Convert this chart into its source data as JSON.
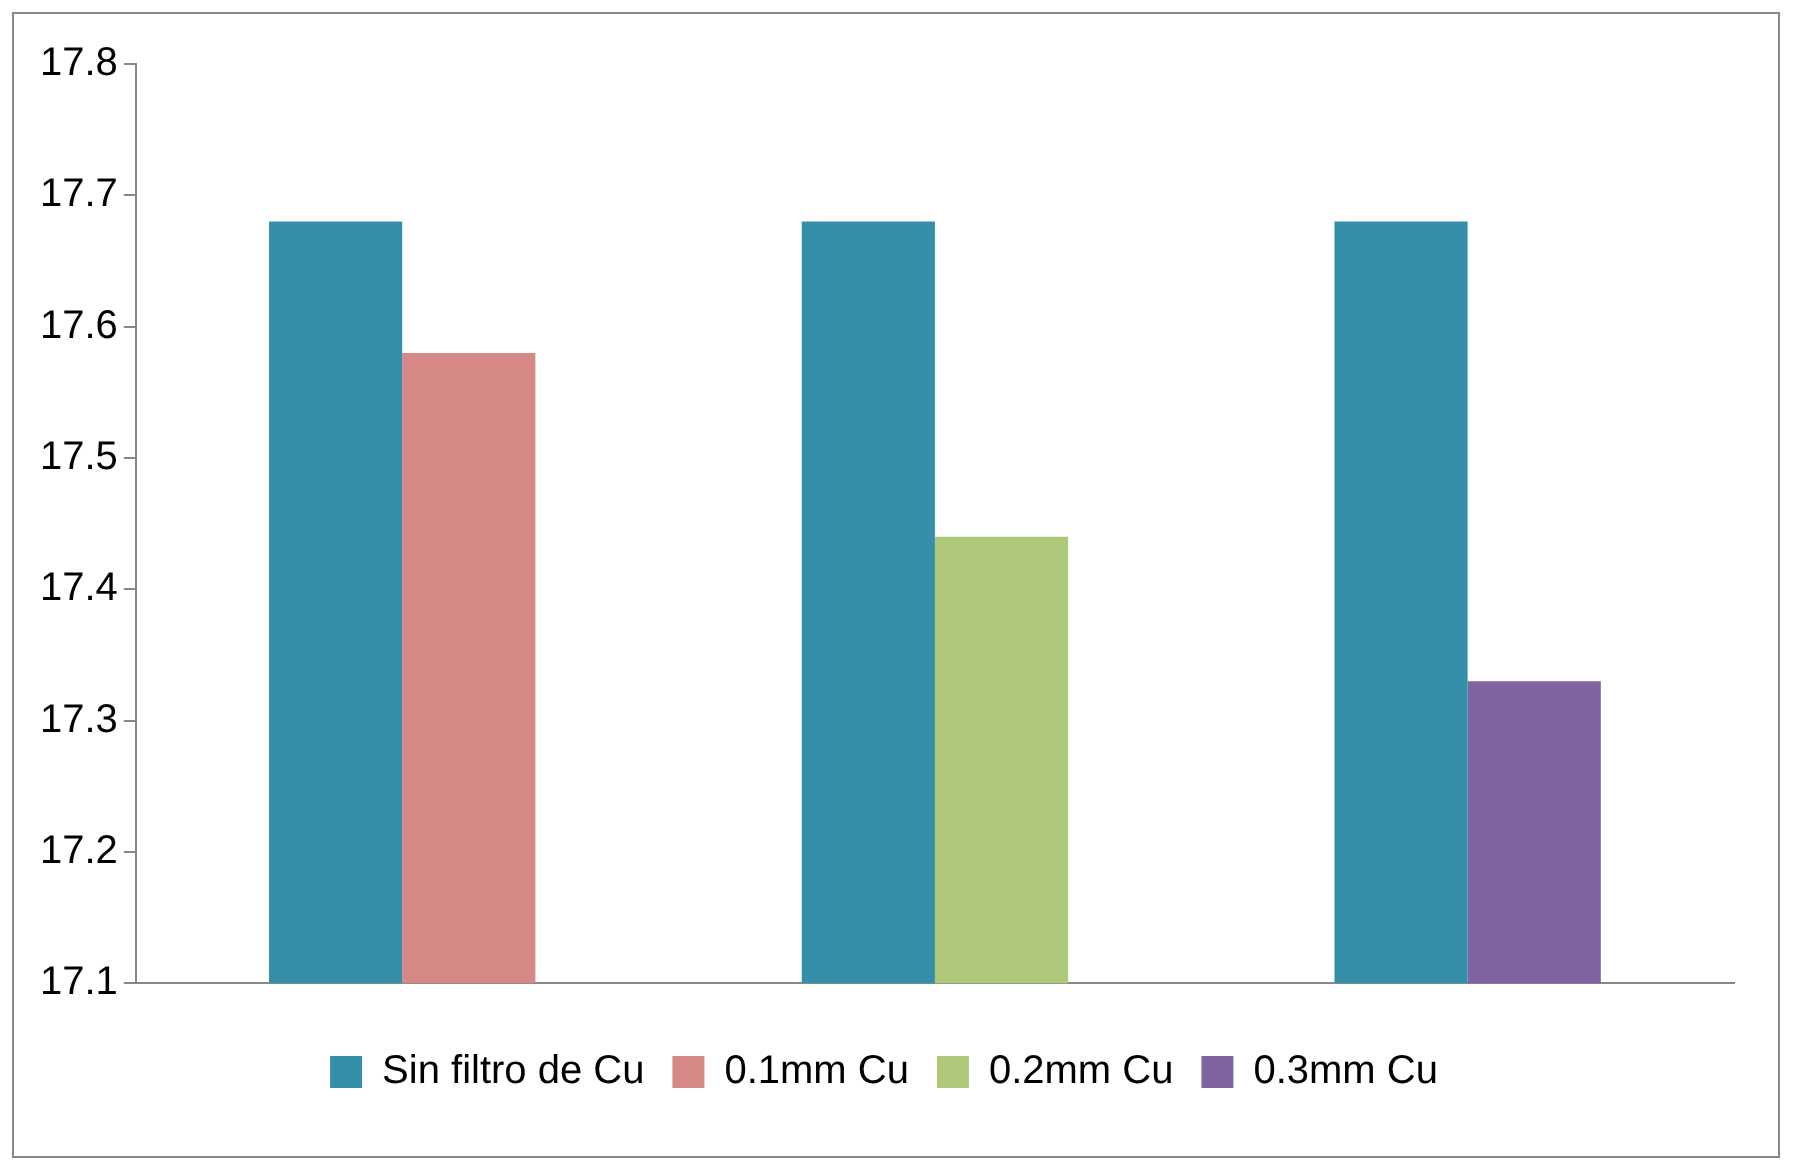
{
  "chart_data": {
    "type": "bar",
    "categories": [
      null,
      null,
      null
    ],
    "series": [
      {
        "name": "Sin filtro de Cu",
        "color": "#368fa8",
        "values": [
          17.68,
          17.68,
          17.68
        ]
      },
      {
        "name": "0.1mm Cu",
        "color": "#d58885",
        "values": [
          17.58,
          null,
          null
        ]
      },
      {
        "name": "0.2mm Cu",
        "color": "#afc97a",
        "values": [
          null,
          17.44,
          null
        ]
      },
      {
        "name": "0.3mm Cu",
        "color": "#8064a2",
        "values": [
          null,
          null,
          17.33
        ]
      }
    ],
    "ylim": [
      17.1,
      17.8
    ],
    "yticks": [
      17.1,
      17.2,
      17.3,
      17.4,
      17.5,
      17.6,
      17.7,
      17.8
    ],
    "grid": false,
    "legend": "bottom"
  }
}
